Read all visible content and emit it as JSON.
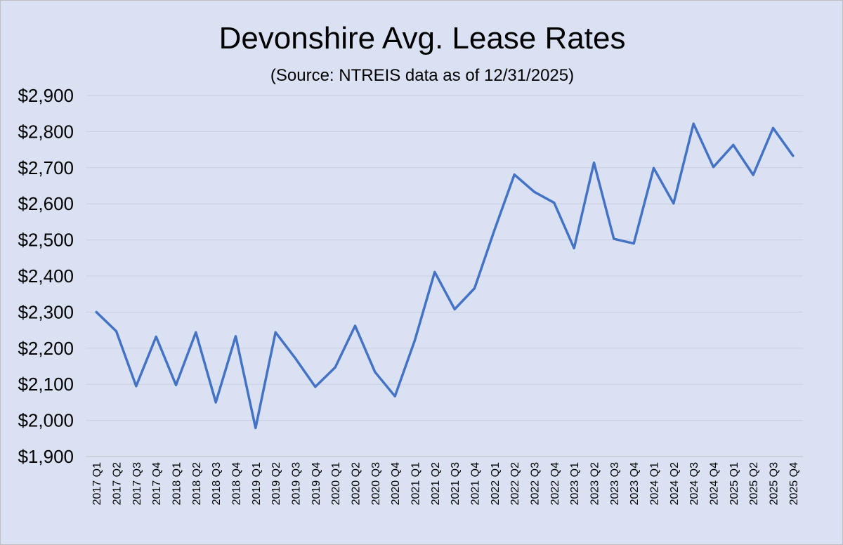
{
  "chart_data": {
    "type": "line",
    "title": "Devonshire Avg. Lease Rates",
    "subtitle": "(Source: NTREIS data as of 12/31/2025)",
    "xlabel": "",
    "ylabel": "",
    "ylim": [
      1900,
      2900
    ],
    "y_ticks": [
      1900,
      2000,
      2100,
      2200,
      2300,
      2400,
      2500,
      2600,
      2700,
      2800,
      2900
    ],
    "y_tick_labels": [
      "$1,900",
      "$2,000",
      "$2,100",
      "$2,200",
      "$2,300",
      "$2,400",
      "$2,500",
      "$2,600",
      "$2,700",
      "$2,800",
      "$2,900"
    ],
    "grid": true,
    "line_color": "#4472c4",
    "categories": [
      "2017 Q1",
      "2017 Q2",
      "2017 Q3",
      "2017 Q4",
      "2018 Q1",
      "2018 Q2",
      "2018 Q3",
      "2018 Q4",
      "2019 Q1",
      "2019 Q2",
      "2019 Q3",
      "2019 Q4",
      "2020 Q1",
      "2020 Q2",
      "2020 Q3",
      "2020 Q4",
      "2021 Q1",
      "2021 Q2",
      "2021 Q3",
      "2021 Q4",
      "2022 Q1",
      "2022 Q2",
      "2022 Q3",
      "2022 Q4",
      "2023 Q1",
      "2023 Q2",
      "2023 Q3",
      "2023 Q4",
      "2024 Q1",
      "2024 Q2",
      "2024 Q3",
      "2024 Q4",
      "2025 Q1",
      "2025 Q2",
      "2025 Q3",
      "2025 Q4"
    ],
    "series": [
      {
        "name": "Avg. Lease Rate",
        "values": [
          2300,
          2247,
          2095,
          2232,
          2098,
          2244,
          2050,
          2233,
          1979,
          2244,
          2172,
          2093,
          2147,
          2262,
          2134,
          2067,
          2222,
          2411,
          2308,
          2366,
          2527,
          2681,
          2633,
          2603,
          2477,
          2714,
          2503,
          2490,
          2699,
          2601,
          2822,
          2702,
          2763,
          2680,
          2810,
          2733
        ]
      }
    ]
  }
}
